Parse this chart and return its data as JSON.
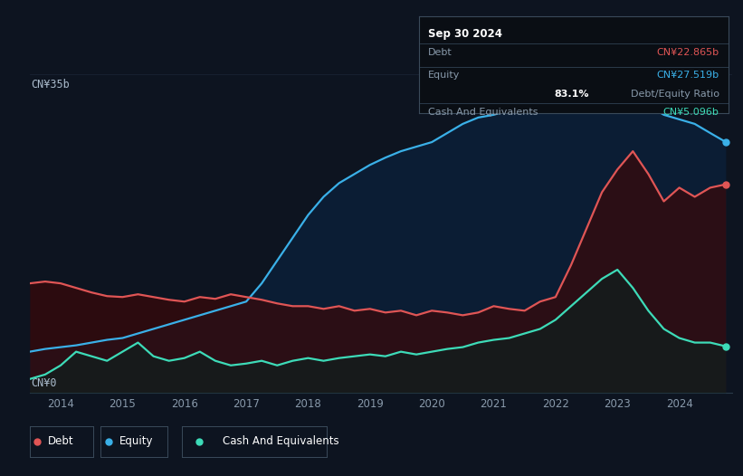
{
  "background_color": "#0d1420",
  "chart_bg": "#0d1420",
  "colors": {
    "debt": "#e05555",
    "equity": "#3ab0e8",
    "cash": "#3ddbb8",
    "debt_fill": "#4a0a0a",
    "equity_fill": "#0a2040",
    "cash_fill": "#0a2a28",
    "grid": "#1e2a3a",
    "tooltip_bg": "#0a0e14",
    "tooltip_border": "#3a4a5a"
  },
  "legend": [
    {
      "label": "Debt",
      "color": "#e05555"
    },
    {
      "label": "Equity",
      "color": "#3ab0e8"
    },
    {
      "label": "Cash And Equivalents",
      "color": "#3ddbb8"
    }
  ],
  "tooltip": {
    "date": "Sep 30 2024",
    "debt_label": "Debt",
    "debt_value": "CN¥22.865b",
    "equity_label": "Equity",
    "equity_value": "CN¥27.519b",
    "ratio_bold": "83.1%",
    "ratio_text": "Debt/Equity Ratio",
    "cash_label": "Cash And Equivalents",
    "cash_value": "CN¥5.096b"
  },
  "y_label_top": "CN¥35b",
  "y_label_bottom": "CN¥0",
  "x_ticks": [
    2014,
    2015,
    2016,
    2017,
    2018,
    2019,
    2020,
    2021,
    2022,
    2023,
    2024
  ],
  "xlim": [
    2013.5,
    2024.85
  ],
  "ylim": [
    0,
    35
  ],
  "debt_x": [
    2013.5,
    2013.75,
    2014.0,
    2014.25,
    2014.5,
    2014.75,
    2015.0,
    2015.25,
    2015.5,
    2015.75,
    2016.0,
    2016.25,
    2016.5,
    2016.75,
    2017.0,
    2017.25,
    2017.5,
    2017.75,
    2018.0,
    2018.25,
    2018.5,
    2018.75,
    2019.0,
    2019.25,
    2019.5,
    2019.75,
    2020.0,
    2020.25,
    2020.5,
    2020.75,
    2021.0,
    2021.25,
    2021.5,
    2021.75,
    2022.0,
    2022.25,
    2022.5,
    2022.75,
    2023.0,
    2023.25,
    2023.5,
    2023.75,
    2024.0,
    2024.25,
    2024.5,
    2024.75
  ],
  "debt_y": [
    12.0,
    12.2,
    12.0,
    11.5,
    11.0,
    10.6,
    10.5,
    10.8,
    10.5,
    10.2,
    10.0,
    10.5,
    10.3,
    10.8,
    10.5,
    10.2,
    9.8,
    9.5,
    9.5,
    9.2,
    9.5,
    9.0,
    9.2,
    8.8,
    9.0,
    8.5,
    9.0,
    8.8,
    8.5,
    8.8,
    9.5,
    9.2,
    9.0,
    10.0,
    10.5,
    14.0,
    18.0,
    22.0,
    24.5,
    26.5,
    24.0,
    21.0,
    22.5,
    21.5,
    22.5,
    22.865
  ],
  "equity_x": [
    2013.5,
    2013.75,
    2014.0,
    2014.25,
    2014.5,
    2014.75,
    2015.0,
    2015.25,
    2015.5,
    2015.75,
    2016.0,
    2016.25,
    2016.5,
    2016.75,
    2017.0,
    2017.25,
    2017.5,
    2017.75,
    2018.0,
    2018.25,
    2018.5,
    2018.75,
    2019.0,
    2019.25,
    2019.5,
    2019.75,
    2020.0,
    2020.25,
    2020.5,
    2020.75,
    2021.0,
    2021.25,
    2021.5,
    2021.75,
    2022.0,
    2022.25,
    2022.5,
    2022.75,
    2023.0,
    2023.25,
    2023.5,
    2023.75,
    2024.0,
    2024.25,
    2024.5,
    2024.75
  ],
  "equity_y": [
    4.5,
    4.8,
    5.0,
    5.2,
    5.5,
    5.8,
    6.0,
    6.5,
    7.0,
    7.5,
    8.0,
    8.5,
    9.0,
    9.5,
    10.0,
    12.0,
    14.5,
    17.0,
    19.5,
    21.5,
    23.0,
    24.0,
    25.0,
    25.8,
    26.5,
    27.0,
    27.5,
    28.5,
    29.5,
    30.2,
    30.5,
    31.0,
    31.5,
    31.0,
    31.5,
    32.0,
    32.5,
    31.5,
    32.0,
    31.0,
    31.5,
    30.5,
    30.0,
    29.5,
    28.5,
    27.519
  ],
  "cash_x": [
    2013.5,
    2013.75,
    2014.0,
    2014.25,
    2014.5,
    2014.75,
    2015.0,
    2015.25,
    2015.5,
    2015.75,
    2016.0,
    2016.25,
    2016.5,
    2016.75,
    2017.0,
    2017.25,
    2017.5,
    2017.75,
    2018.0,
    2018.25,
    2018.5,
    2018.75,
    2019.0,
    2019.25,
    2019.5,
    2019.75,
    2020.0,
    2020.25,
    2020.5,
    2020.75,
    2021.0,
    2021.25,
    2021.5,
    2021.75,
    2022.0,
    2022.25,
    2022.5,
    2022.75,
    2023.0,
    2023.25,
    2023.5,
    2023.75,
    2024.0,
    2024.25,
    2024.5,
    2024.75
  ],
  "cash_y": [
    1.5,
    2.0,
    3.0,
    4.5,
    4.0,
    3.5,
    4.5,
    5.5,
    4.0,
    3.5,
    3.8,
    4.5,
    3.5,
    3.0,
    3.2,
    3.5,
    3.0,
    3.5,
    3.8,
    3.5,
    3.8,
    4.0,
    4.2,
    4.0,
    4.5,
    4.2,
    4.5,
    4.8,
    5.0,
    5.5,
    5.8,
    6.0,
    6.5,
    7.0,
    8.0,
    9.5,
    11.0,
    12.5,
    13.5,
    11.5,
    9.0,
    7.0,
    6.0,
    5.5,
    5.5,
    5.096
  ]
}
